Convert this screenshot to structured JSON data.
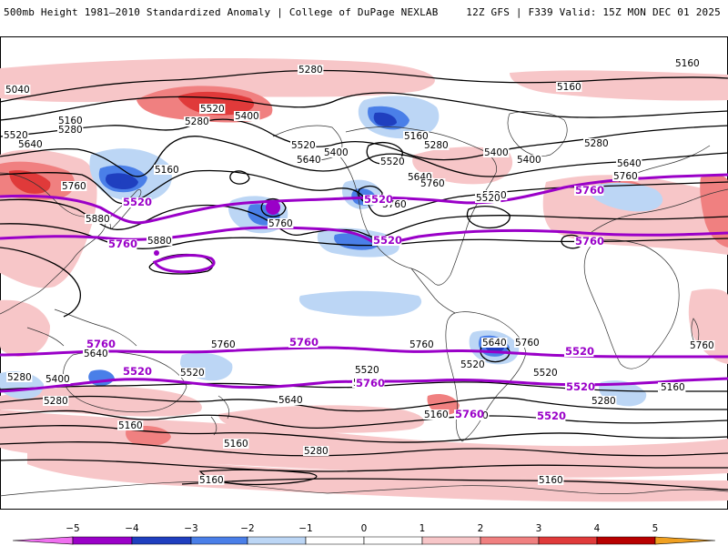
{
  "header": {
    "left_title": "500mb Height 1981–2010 Standardized Anomaly | College of DuPage NEXLAB",
    "right_info": "12Z GFS | F339 Valid: 15Z MON DEC 01 2025"
  },
  "colors": {
    "neg5": "#f070f0",
    "neg4": "#9a00c8",
    "neg3": "#1f3fbf",
    "neg2": "#4a7fe8",
    "neg1": "#bcd6f5",
    "zero": "#ffffff",
    "pos1": "#f7c6c8",
    "pos2": "#f08080",
    "pos3": "#e03a3a",
    "pos4": "#b80000",
    "pos5": "#f0a020",
    "contour": "#000000",
    "highlight_contour": "#9a00c8",
    "coastline": "#333333"
  },
  "contour_labels": {
    "top_left": [
      "5040",
      "5160",
      "5280",
      "5520",
      "5640",
      "5760",
      "5880",
      "5880"
    ],
    "north_pacific": [
      "5280",
      "5520",
      "5400",
      "5280",
      "5160",
      "5760",
      "5520",
      "5640",
      "5400"
    ],
    "north_america": [
      "5160",
      "5280",
      "5400",
      "5520",
      "5640",
      "5760"
    ],
    "atlantic_europe": [
      "5160",
      "5160",
      "5280",
      "5400",
      "5520",
      "5640",
      "5760",
      "5520",
      "5760"
    ],
    "south": [
      "5760",
      "5640",
      "5400",
      "5280",
      "5520",
      "5160",
      "5520",
      "5400",
      "5640",
      "5760",
      "5160",
      "5280",
      "5640",
      "5760",
      "5520",
      "5400",
      "5160",
      "5520",
      "5760",
      "5280",
      "5160"
    ],
    "far_south": [
      "5160",
      "5280",
      "5160",
      "5160"
    ],
    "highlight": [
      "5520",
      "5760",
      "5520",
      "5760",
      "5520",
      "5760",
      "5760",
      "5520",
      "5760",
      "5760",
      "5520",
      "5520",
      "5760",
      "5520"
    ]
  },
  "legend": {
    "ticks": [
      "−5",
      "−4",
      "−3",
      "−2",
      "−1",
      "0",
      "1",
      "2",
      "3",
      "4",
      "5"
    ]
  }
}
